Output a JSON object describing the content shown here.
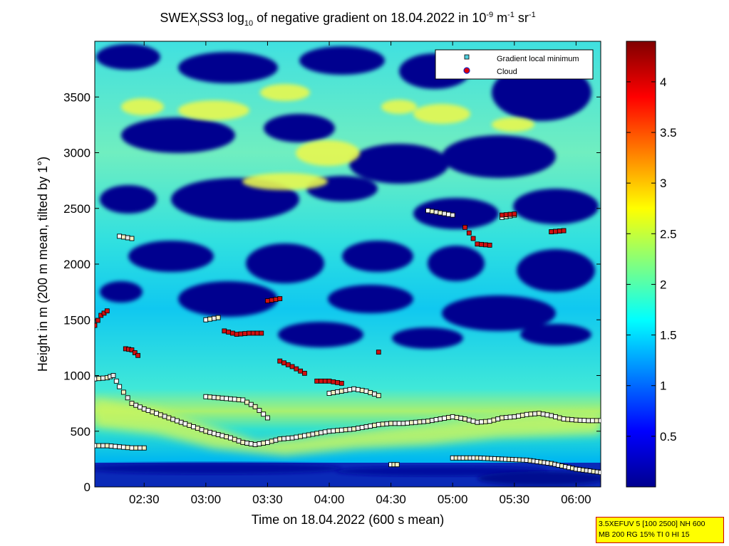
{
  "chart_data": {
    "type": "heatmap",
    "title": {
      "p1": "SWEX",
      "sub1": "l",
      "p2": "SS3 log",
      "sub2": "10",
      "p3": " of negative gradient on 18.04.2022 in 10",
      "sup1": "-9",
      "p4": " m",
      "sup2": "-1",
      "p5": " sr",
      "sup3": "-1"
    },
    "xlabel": "Time on 18.04.2022 (600 s mean)",
    "ylabel": "Height in m (200 m mean, tilted by 1°)",
    "x_range_hours": [
      2.1,
      6.2
    ],
    "ylim": [
      0,
      4000
    ],
    "x_ticks": [
      {
        "label": "02:30",
        "hour": 2.5
      },
      {
        "label": "03:00",
        "hour": 3.0
      },
      {
        "label": "03:30",
        "hour": 3.5
      },
      {
        "label": "04:00",
        "hour": 4.0
      },
      {
        "label": "04:30",
        "hour": 4.5
      },
      {
        "label": "05:00",
        "hour": 5.0
      },
      {
        "label": "05:30",
        "hour": 5.5
      },
      {
        "label": "06:00",
        "hour": 6.0
      }
    ],
    "y_ticks": [
      0,
      500,
      1000,
      1500,
      2000,
      2500,
      3000,
      3500
    ],
    "colorbar": {
      "range": [
        0,
        4.4
      ],
      "ticks": [
        "0.5",
        "1",
        "1.5",
        "2",
        "2.5",
        "3",
        "3.5",
        "4"
      ],
      "tick_values": [
        0.5,
        1,
        1.5,
        2,
        2.5,
        3,
        3.5,
        4
      ],
      "colormap": "jet"
    },
    "legend": {
      "placement": "top-right",
      "entries": [
        {
          "label": "Gradient local minimum",
          "marker": "square",
          "color": "#50d0e0"
        },
        {
          "label": "Cloud",
          "marker": "circle",
          "color": "#e00000"
        }
      ]
    },
    "series": [
      {
        "name": "Gradient local minimum",
        "layers": [
          {
            "x": [
              2.1,
              2.2,
              2.3,
              2.4,
              2.5
            ],
            "y": [
              370,
              370,
              360,
              350,
              350
            ]
          },
          {
            "x": [
              2.1,
              2.2,
              2.25,
              2.3,
              2.4,
              2.5,
              2.6,
              2.7,
              2.8,
              2.9,
              3.0,
              3.1,
              3.2,
              3.3,
              3.4,
              3.5,
              3.6,
              3.7,
              3.8,
              3.9,
              4.0,
              4.1,
              4.2,
              4.3,
              4.4,
              4.5,
              4.6,
              4.7,
              4.8,
              4.9,
              5.0,
              5.1,
              5.2,
              5.3,
              5.4,
              5.5,
              5.6,
              5.7,
              5.8,
              5.9,
              6.0,
              6.1,
              6.2
            ],
            "y": [
              970,
              980,
              1000,
              900,
              750,
              700,
              660,
              620,
              580,
              540,
              500,
              470,
              440,
              400,
              380,
              400,
              430,
              440,
              460,
              480,
              500,
              510,
              520,
              540,
              560,
              570,
              570,
              580,
              590,
              610,
              630,
              610,
              580,
              590,
              620,
              630,
              650,
              660,
              640,
              610,
              600,
              595,
              595
            ]
          },
          {
            "x": [
              3.0,
              3.1,
              3.2,
              3.3,
              3.4,
              3.5
            ],
            "y": [
              810,
              800,
              790,
              780,
              720,
              620
            ]
          },
          {
            "x": [
              4.0,
              4.1,
              4.2,
              4.3,
              4.4
            ],
            "y": [
              840,
              860,
              880,
              860,
              820
            ]
          },
          {
            "x": [
              5.0,
              5.2,
              5.4,
              5.6,
              5.8,
              6.0,
              6.2
            ],
            "y": [
              260,
              260,
              250,
              240,
              210,
              160,
              130
            ]
          },
          {
            "x": [
              2.3,
              2.4
            ],
            "y": [
              2250,
              2230
            ]
          },
          {
            "x": [
              3.0,
              3.1
            ],
            "y": [
              1500,
              1520
            ]
          },
          {
            "x": [
              4.8,
              4.9,
              5.0
            ],
            "y": [
              2480,
              2460,
              2440
            ]
          },
          {
            "x": [
              5.4,
              5.5
            ],
            "y": [
              2420,
              2440
            ]
          },
          {
            "x": [
              5.8,
              5.9
            ],
            "y": [
              2290,
              2300
            ]
          },
          {
            "x": [
              4.5,
              4.55
            ],
            "y": [
              200,
              200
            ]
          }
        ]
      },
      {
        "name": "Cloud",
        "layers": [
          {
            "x": [
              2.1,
              2.15,
              2.2
            ],
            "y": [
              1450,
              1540,
              1580
            ]
          },
          {
            "x": [
              2.35,
              2.4,
              2.45
            ],
            "y": [
              1240,
              1230,
              1180
            ]
          },
          {
            "x": [
              3.15,
              3.25,
              3.35,
              3.45
            ],
            "y": [
              1400,
              1370,
              1380,
              1380
            ]
          },
          {
            "x": [
              3.6,
              3.7,
              3.8
            ],
            "y": [
              1130,
              1080,
              1020
            ]
          },
          {
            "x": [
              3.9,
              4.0,
              4.1
            ],
            "y": [
              950,
              950,
              930
            ]
          },
          {
            "x": [
              3.5,
              3.6
            ],
            "y": [
              1670,
              1690
            ]
          },
          {
            "x": [
              5.1,
              5.2,
              5.3
            ],
            "y": [
              2330,
              2180,
              2170
            ]
          },
          {
            "x": [
              5.4,
              5.5
            ],
            "y": [
              2440,
              2450
            ]
          },
          {
            "x": [
              5.8,
              5.9
            ],
            "y": [
              2290,
              2300
            ]
          },
          {
            "x": [
              4.4
            ],
            "y": [
              1210
            ]
          }
        ]
      }
    ]
  },
  "info_box": {
    "line1": "3.5XEFUV 5 [100 2500] NH 600",
    "line2": "MB 200 RG 15% TI 0 HI 15"
  }
}
